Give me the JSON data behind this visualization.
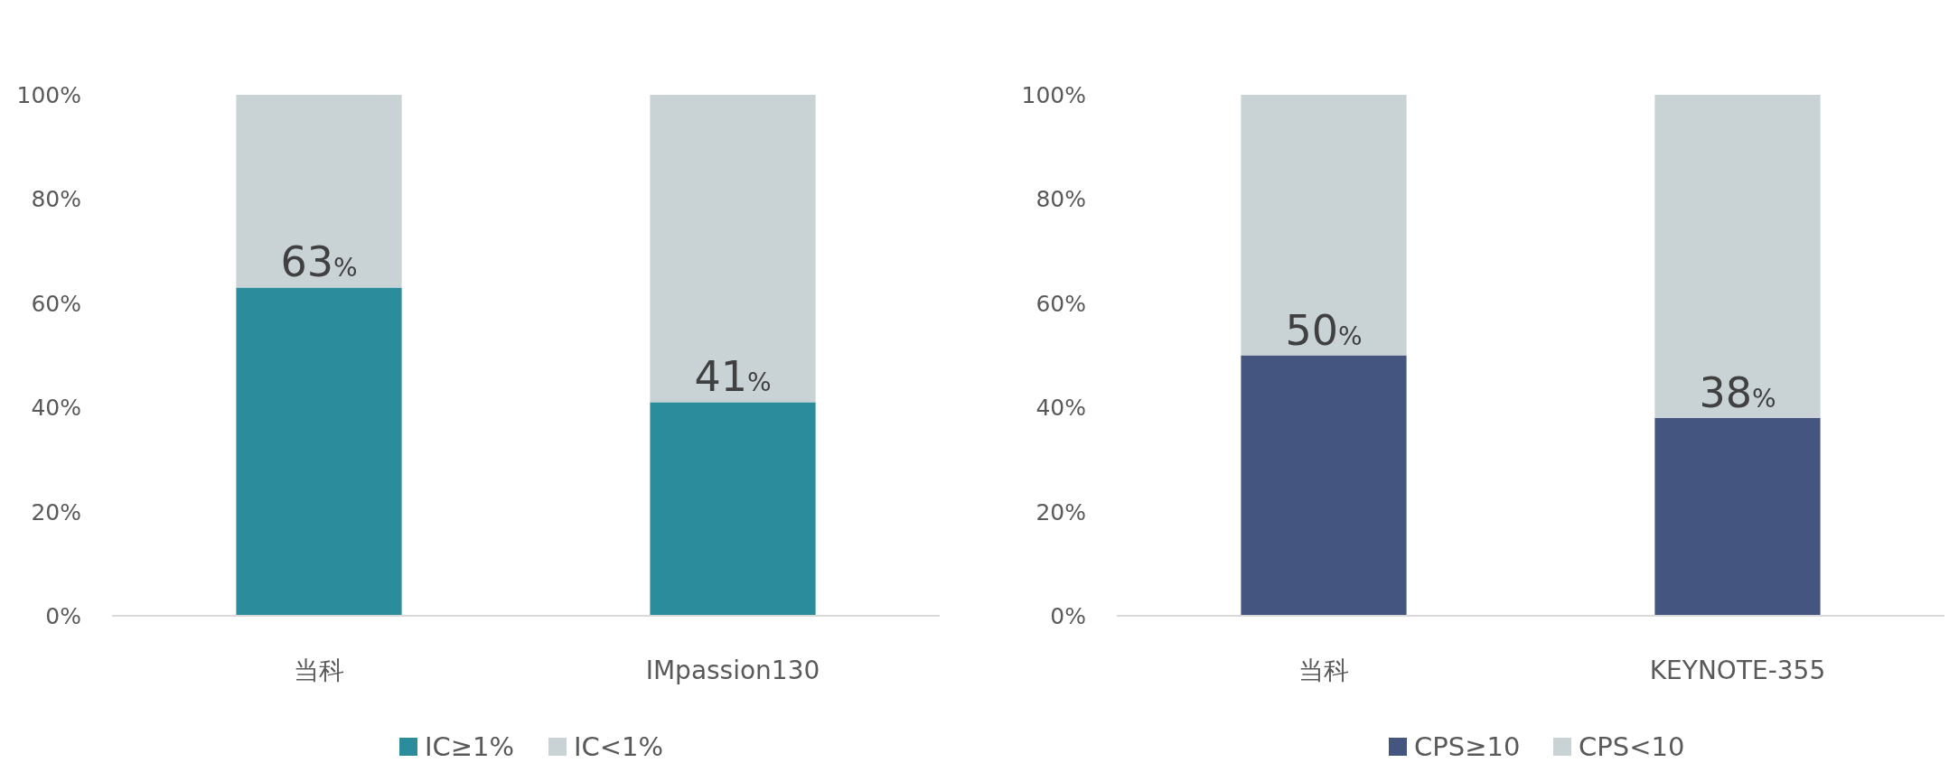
{
  "chart_data": [
    {
      "type": "bar",
      "stacked": true,
      "categories": [
        "当科",
        "IMpassion130"
      ],
      "ylim": [
        0,
        100
      ],
      "yticks": [
        {
          "value": 0,
          "label": "0%"
        },
        {
          "value": 20,
          "label": "20%"
        },
        {
          "value": 40,
          "label": "40%"
        },
        {
          "value": 60,
          "label": "60%"
        },
        {
          "value": 80,
          "label": "80%"
        },
        {
          "value": 100,
          "label": "100%"
        }
      ],
      "grid": false,
      "legend": "bottom",
      "series": [
        {
          "name": "IC≥1%",
          "color": "#2b8c9c",
          "values": [
            63,
            41
          ],
          "value_labels": [
            "63%",
            "41%"
          ]
        },
        {
          "name": "IC<1%",
          "color": "#c9d3d6",
          "values": [
            37,
            59
          ]
        }
      ]
    },
    {
      "type": "bar",
      "stacked": true,
      "categories": [
        "当科",
        "KEYNOTE-355"
      ],
      "ylim": [
        0,
        100
      ],
      "yticks": [
        {
          "value": 0,
          "label": "0%"
        },
        {
          "value": 20,
          "label": "20%"
        },
        {
          "value": 40,
          "label": "40%"
        },
        {
          "value": 60,
          "label": "60%"
        },
        {
          "value": 80,
          "label": "80%"
        },
        {
          "value": 100,
          "label": "100%"
        }
      ],
      "grid": false,
      "legend": "bottom",
      "series": [
        {
          "name": "CPS≥10",
          "color": "#44567f",
          "values": [
            50,
            38
          ],
          "value_labels": [
            "50%",
            "38%"
          ]
        },
        {
          "name": "CPS<10",
          "color": "#c9d3d6",
          "values": [
            50,
            62
          ]
        }
      ]
    }
  ]
}
